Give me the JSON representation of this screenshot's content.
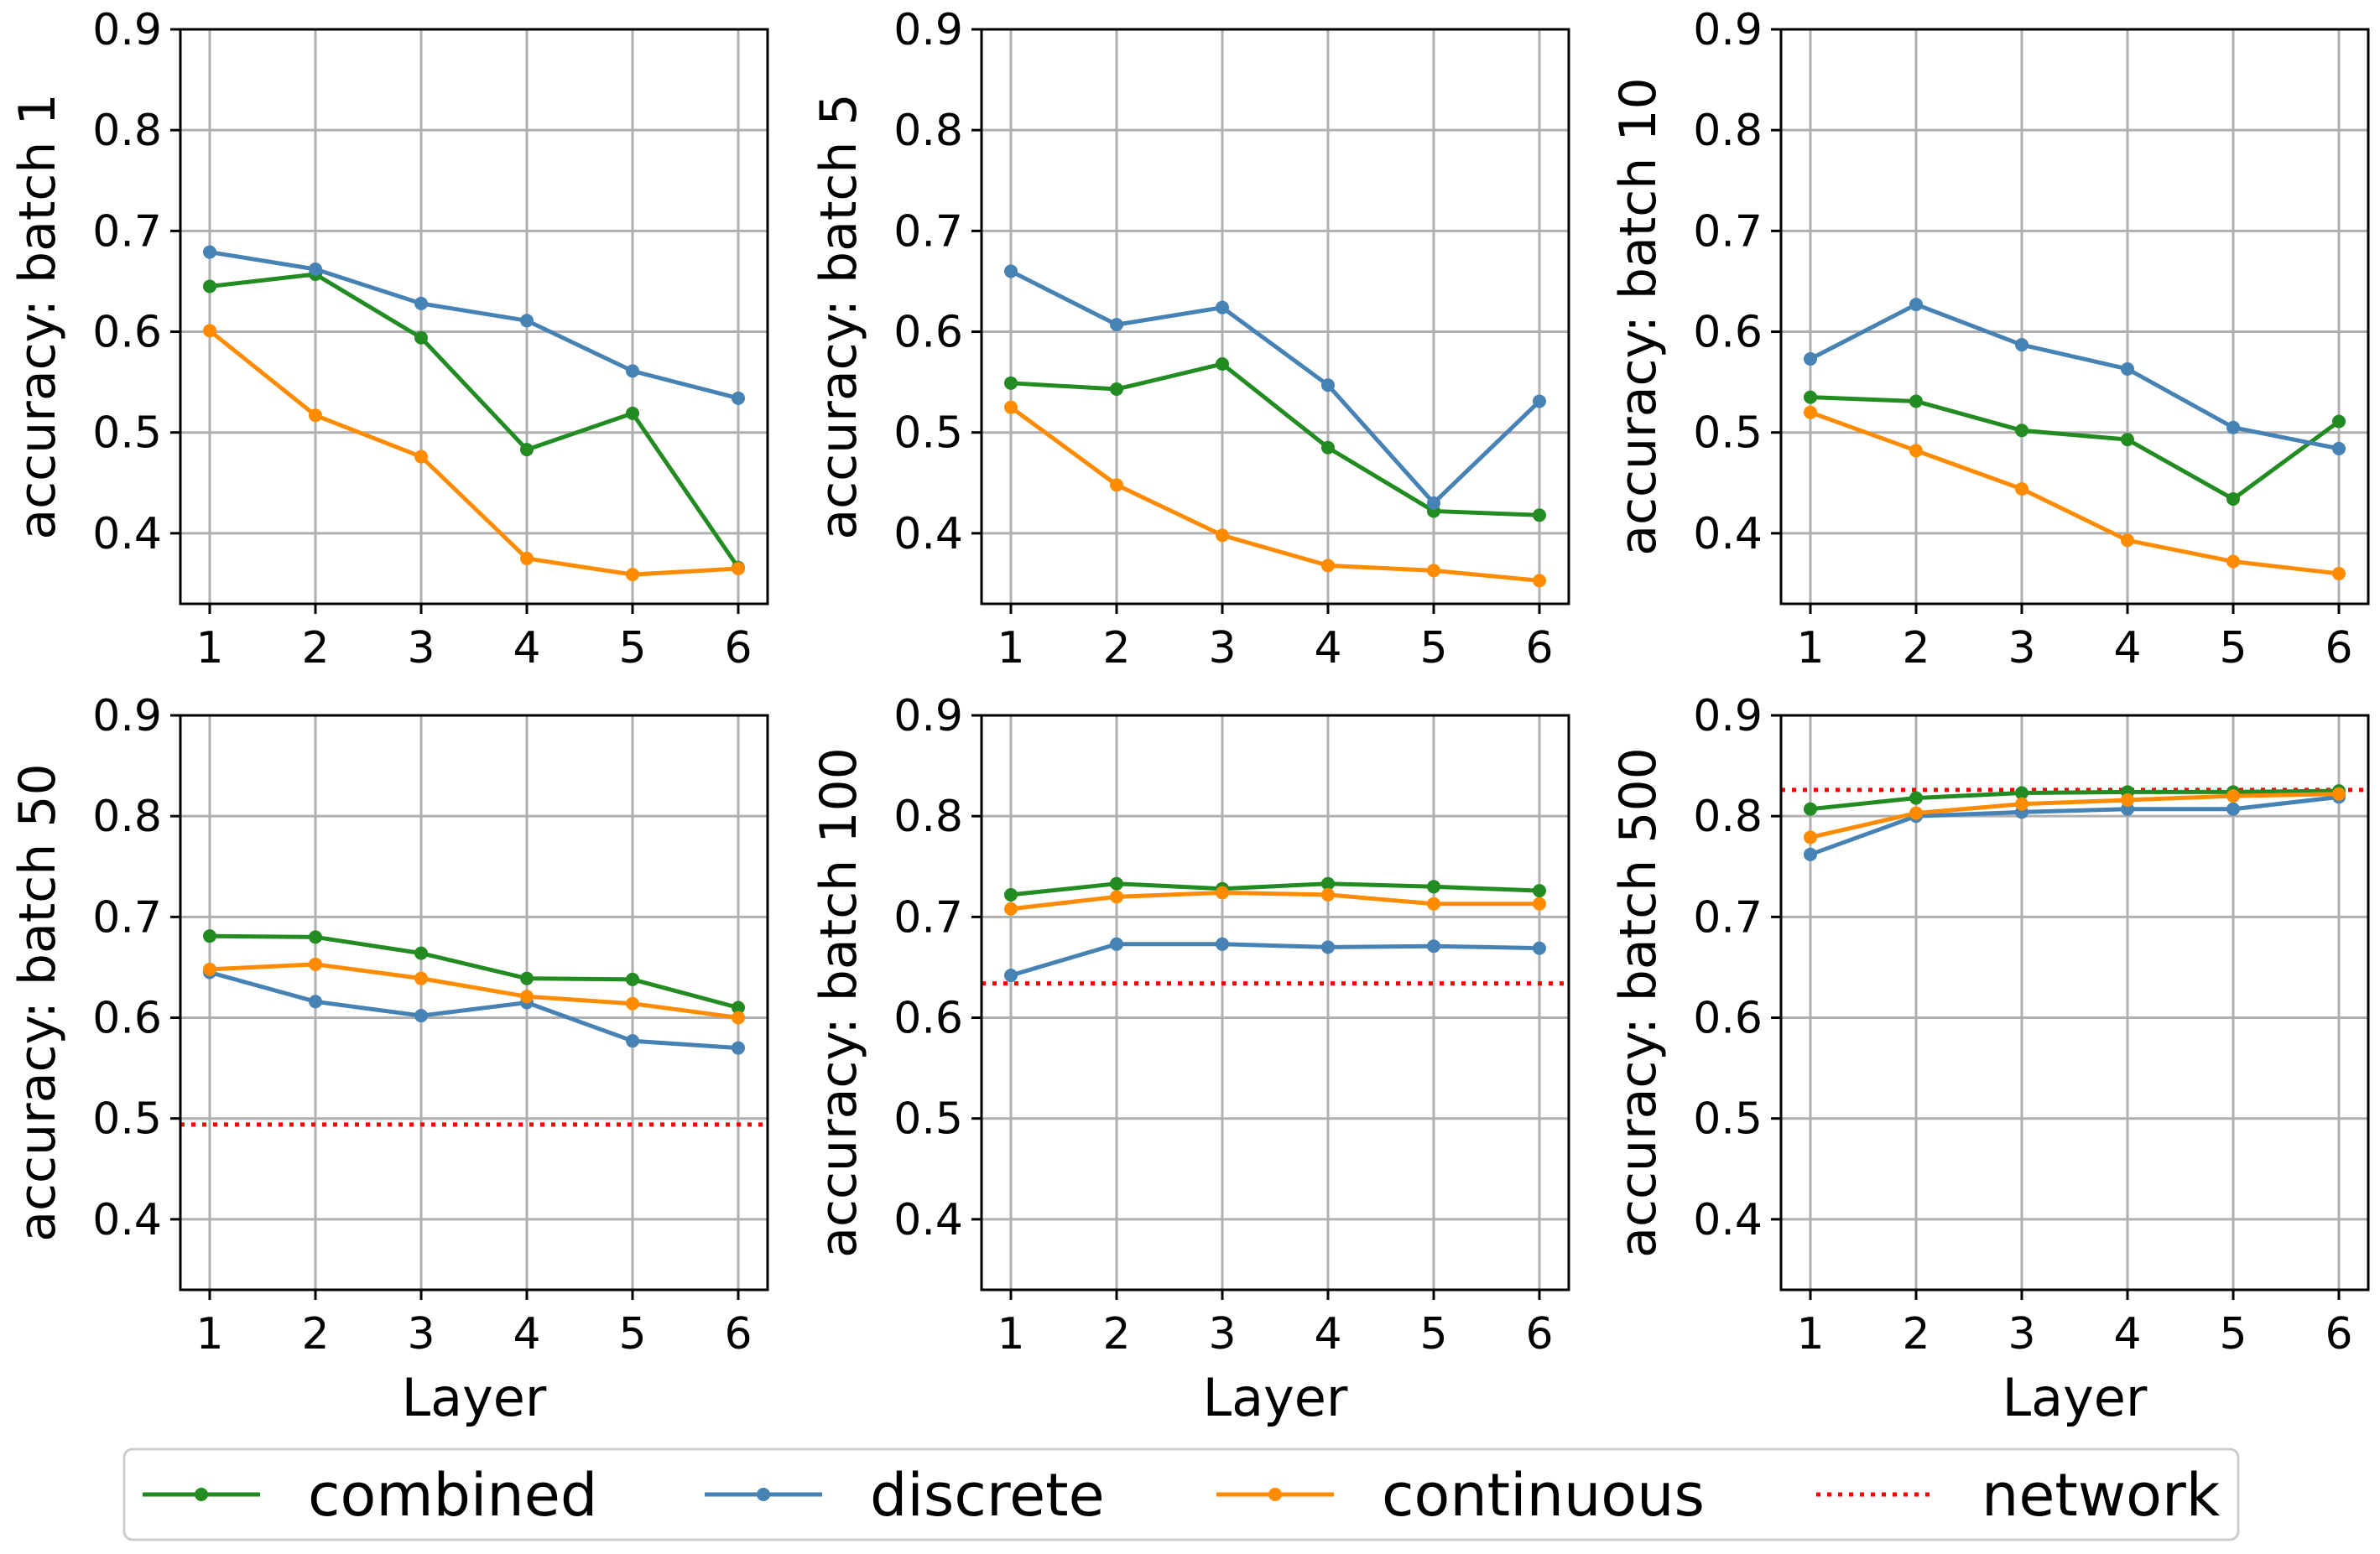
{
  "chart_data": [
    {
      "type": "line",
      "ylabel": "accuracy: batch 1",
      "xlabel": "",
      "x": [
        1,
        2,
        3,
        4,
        5,
        6
      ],
      "ylim": [
        0.33,
        0.9
      ],
      "yticks": [
        0.4,
        0.5,
        0.6,
        0.7,
        0.8,
        0.9
      ],
      "ytick_labels": [
        "0.4",
        "0.5",
        "0.6",
        "0.7",
        "0.8",
        "0.9"
      ],
      "xtick_labels": [
        "1",
        "2",
        "3",
        "4",
        "5",
        "6"
      ],
      "series": [
        {
          "name": "combined",
          "values": [
            0.645,
            0.657,
            0.594,
            0.483,
            0.519,
            0.366
          ]
        },
        {
          "name": "discrete",
          "values": [
            0.679,
            0.662,
            0.628,
            0.611,
            0.561,
            0.534
          ]
        },
        {
          "name": "continuous",
          "values": [
            0.601,
            0.517,
            0.476,
            0.375,
            0.359,
            0.365
          ]
        }
      ],
      "network": null
    },
    {
      "type": "line",
      "ylabel": "accuracy: batch 5",
      "xlabel": "",
      "x": [
        1,
        2,
        3,
        4,
        5,
        6
      ],
      "ylim": [
        0.33,
        0.9
      ],
      "yticks": [
        0.4,
        0.5,
        0.6,
        0.7,
        0.8,
        0.9
      ],
      "ytick_labels": [
        "0.4",
        "0.5",
        "0.6",
        "0.7",
        "0.8",
        "0.9"
      ],
      "xtick_labels": [
        "1",
        "2",
        "3",
        "4",
        "5",
        "6"
      ],
      "series": [
        {
          "name": "combined",
          "values": [
            0.549,
            0.543,
            0.568,
            0.485,
            0.422,
            0.418
          ]
        },
        {
          "name": "discrete",
          "values": [
            0.66,
            0.607,
            0.624,
            0.547,
            0.43,
            0.531
          ]
        },
        {
          "name": "continuous",
          "values": [
            0.525,
            0.448,
            0.398,
            0.368,
            0.363,
            0.353
          ]
        }
      ],
      "network": null
    },
    {
      "type": "line",
      "ylabel": "accuracy: batch 10",
      "xlabel": "",
      "x": [
        1,
        2,
        3,
        4,
        5,
        6
      ],
      "ylim": [
        0.33,
        0.9
      ],
      "yticks": [
        0.4,
        0.5,
        0.6,
        0.7,
        0.8,
        0.9
      ],
      "ytick_labels": [
        "0.4",
        "0.5",
        "0.6",
        "0.7",
        "0.8",
        "0.9"
      ],
      "xtick_labels": [
        "1",
        "2",
        "3",
        "4",
        "5",
        "6"
      ],
      "series": [
        {
          "name": "combined",
          "values": [
            0.535,
            0.531,
            0.502,
            0.493,
            0.434,
            0.511
          ]
        },
        {
          "name": "discrete",
          "values": [
            0.573,
            0.627,
            0.587,
            0.563,
            0.505,
            0.484
          ]
        },
        {
          "name": "continuous",
          "values": [
            0.52,
            0.482,
            0.444,
            0.393,
            0.372,
            0.36
          ]
        }
      ],
      "network": null
    },
    {
      "type": "line",
      "ylabel": "accuracy: batch 50",
      "xlabel": "Layer",
      "x": [
        1,
        2,
        3,
        4,
        5,
        6
      ],
      "ylim": [
        0.33,
        0.9
      ],
      "yticks": [
        0.4,
        0.5,
        0.6,
        0.7,
        0.8,
        0.9
      ],
      "ytick_labels": [
        "0.4",
        "0.5",
        "0.6",
        "0.7",
        "0.8",
        "0.9"
      ],
      "xtick_labels": [
        "1",
        "2",
        "3",
        "4",
        "5",
        "6"
      ],
      "series": [
        {
          "name": "combined",
          "values": [
            0.681,
            0.68,
            0.664,
            0.639,
            0.638,
            0.61
          ]
        },
        {
          "name": "discrete",
          "values": [
            0.645,
            0.616,
            0.602,
            0.615,
            0.577,
            0.57
          ]
        },
        {
          "name": "continuous",
          "values": [
            0.648,
            0.653,
            0.639,
            0.621,
            0.614,
            0.6
          ]
        }
      ],
      "network": 0.494
    },
    {
      "type": "line",
      "ylabel": "accuracy: batch 100",
      "xlabel": "Layer",
      "x": [
        1,
        2,
        3,
        4,
        5,
        6
      ],
      "ylim": [
        0.33,
        0.9
      ],
      "yticks": [
        0.4,
        0.5,
        0.6,
        0.7,
        0.8,
        0.9
      ],
      "ytick_labels": [
        "0.4",
        "0.5",
        "0.6",
        "0.7",
        "0.8",
        "0.9"
      ],
      "xtick_labels": [
        "1",
        "2",
        "3",
        "4",
        "5",
        "6"
      ],
      "series": [
        {
          "name": "combined",
          "values": [
            0.722,
            0.733,
            0.728,
            0.733,
            0.73,
            0.726
          ]
        },
        {
          "name": "discrete",
          "values": [
            0.642,
            0.673,
            0.673,
            0.67,
            0.671,
            0.669
          ]
        },
        {
          "name": "continuous",
          "values": [
            0.708,
            0.72,
            0.724,
            0.722,
            0.713,
            0.713
          ]
        }
      ],
      "network": 0.634
    },
    {
      "type": "line",
      "ylabel": "accuracy: batch 500",
      "xlabel": "Layer",
      "x": [
        1,
        2,
        3,
        4,
        5,
        6
      ],
      "ylim": [
        0.33,
        0.9
      ],
      "yticks": [
        0.4,
        0.5,
        0.6,
        0.7,
        0.8,
        0.9
      ],
      "ytick_labels": [
        "0.4",
        "0.5",
        "0.6",
        "0.7",
        "0.8",
        "0.9"
      ],
      "xtick_labels": [
        "1",
        "2",
        "3",
        "4",
        "5",
        "6"
      ],
      "series": [
        {
          "name": "combined",
          "values": [
            0.807,
            0.818,
            0.823,
            0.824,
            0.824,
            0.825
          ]
        },
        {
          "name": "discrete",
          "values": [
            0.762,
            0.8,
            0.804,
            0.807,
            0.807,
            0.819
          ]
        },
        {
          "name": "continuous",
          "values": [
            0.779,
            0.803,
            0.812,
            0.816,
            0.82,
            0.822
          ]
        }
      ],
      "network": 0.826
    }
  ],
  "legend": {
    "entries": [
      {
        "name": "combined",
        "label": "combined",
        "style": "line-marker"
      },
      {
        "name": "discrete",
        "label": "discrete",
        "style": "line-marker"
      },
      {
        "name": "continuous",
        "label": "continuous",
        "style": "line-marker"
      },
      {
        "name": "network",
        "label": "network",
        "style": "dotted"
      }
    ],
    "placement": "bottom"
  },
  "colors": {
    "combined": "#228b22",
    "discrete": "#4682b4",
    "continuous": "#ff8c00",
    "network": "#ff0000",
    "grid": "#b0b0b0",
    "axis": "#000000"
  }
}
